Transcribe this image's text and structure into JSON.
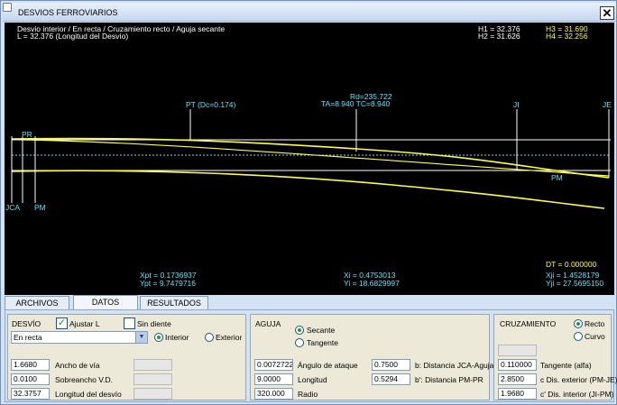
{
  "window": {
    "title": "DESVIOS FERROVIARIOS",
    "close_glyph": "✕"
  },
  "canvas": {
    "header_line1": "Desvio interior / En recta / Cruzamiento recto / Aguja secante",
    "header_line2": "L = 32.376 (Longitud del Desvío)",
    "h1": "H1 =  32.376",
    "h2": "H2 =  31.626",
    "h3": "H3 =  31.690",
    "h4": "H4 =  32.256",
    "rd": "Rd=235.722",
    "ta_tc": "TA=8.940 TC=8.940",
    "pt": "PT (Dc=0.174)",
    "ji": "JI",
    "je": "JE",
    "pr": "PR",
    "pm_left": "PM",
    "jca": "JCA",
    "pm_right": "PM",
    "xpt": "Xpt  =  0.1736937",
    "ypt": "Ypt  =  9.7479716",
    "xi": "Xi  =  0.4753013",
    "yi": "Yi  =  18.6829997",
    "dt": "DT = 0.000000",
    "xji": "Xji  =  1.4528179",
    "yji": "Yji  =  27.5695150",
    "colors": {
      "yellow": "#ffff3a",
      "white": "#ffffff",
      "cyan": "#58e8ff"
    }
  },
  "tabs": [
    "ARCHIVOS",
    "DATOS",
    "RESULTADOS"
  ],
  "desvio": {
    "title": "DESVÍO",
    "ajustar_label": "Ajustar L",
    "ajustar_checked": true,
    "sin_diente_label": "Sin diente",
    "type_value": "En recta",
    "interior_label": "Interior",
    "exterior_label": "Exterior",
    "ancho_value": "1.6680",
    "ancho_label": "Ancho de vía",
    "sobreancho_value": "0.0100",
    "sobreancho_label": "Sobreancho V.D.",
    "longitud_value": "32.3757",
    "longitud_label": "Longitud del desvío"
  },
  "aguja": {
    "title": "AGUJA",
    "secante_label": "Secante",
    "tangente_label": "Tangente",
    "angulo_value": "0.0072722",
    "angulo_label": "Ángulo de ataque",
    "b_value": "0.7500",
    "b_label": "b: Distancia JCA-Aguja",
    "longitud_value": "9.0000",
    "longitud_label": "Longitud",
    "bp_value": "0.5294",
    "bp_label": "b': Distancia PM-PR",
    "radio_value": "320.000",
    "radio_label": "Radio"
  },
  "cruzamiento": {
    "title": "CRUZAMIENTO",
    "recto_label": "Recto",
    "curvo_label": "Curvo",
    "tangente_value": "0.110000",
    "tangente_label": "Tangente (alfa)",
    "c_value": "2.8500",
    "c_label": "c Dis. exterior (PM-JE)",
    "cp_value": "1.9680",
    "cp_label": "c' Dis. interior (JI-PM)"
  }
}
